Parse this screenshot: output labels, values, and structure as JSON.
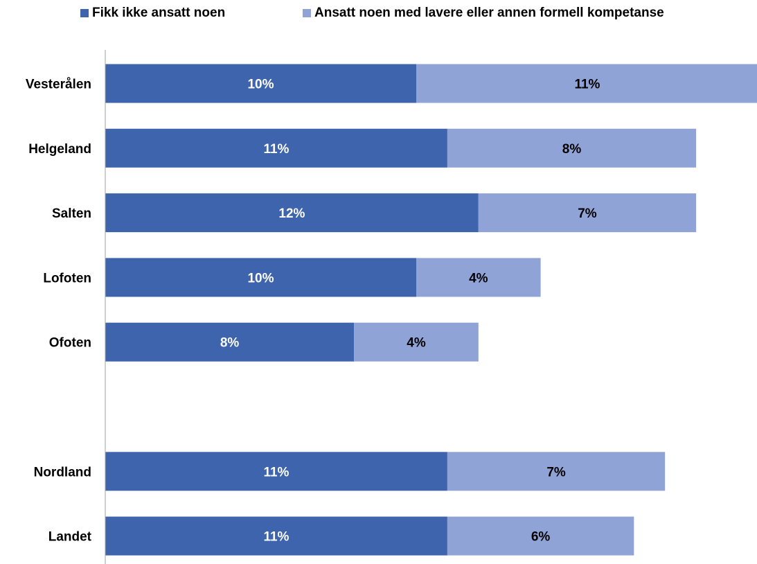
{
  "chart_data": {
    "type": "bar",
    "orientation": "horizontal",
    "stacked": true,
    "categories": [
      "Vesterålen",
      "Helgeland",
      "Salten",
      "Lofoten",
      "Ofoten",
      "",
      "Nordland",
      "Landet"
    ],
    "series": [
      {
        "name": "Fikk ikke ansatt noen",
        "color": "#3d64ad",
        "label_color": "#ffffff",
        "values": [
          10,
          11,
          12,
          10,
          8,
          null,
          11,
          11
        ],
        "labels": [
          "10%",
          "11%",
          "12%",
          "10%",
          "8%",
          "",
          "11%",
          "11%"
        ]
      },
      {
        "name": "Ansatt noen med lavere eller annen formell kompetanse",
        "color": "#8fa3d6",
        "label_color": "#000000",
        "values": [
          11,
          8,
          7,
          4,
          4,
          null,
          7,
          6
        ],
        "labels": [
          "11%",
          "8%",
          "7%",
          "4%",
          "4%",
          "",
          "7%",
          "6%"
        ]
      }
    ],
    "xlim": [
      0,
      21
    ],
    "legend_position": "top",
    "grid": false,
    "axis_color": "#a6a6a6"
  }
}
